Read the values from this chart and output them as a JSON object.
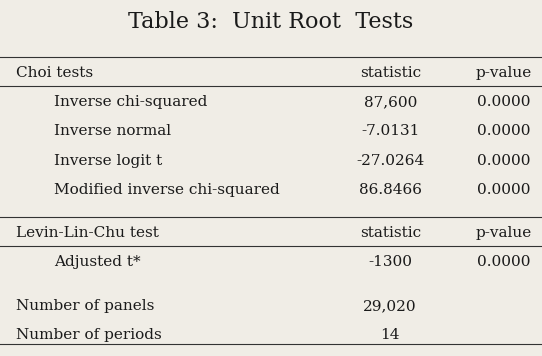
{
  "title": "Table 3:  Unit Root  Tests",
  "background_color": "#f0ede6",
  "text_color": "#1a1a1a",
  "font_family": "serif",
  "title_fontsize": 16,
  "header_fontsize": 11,
  "body_fontsize": 11,
  "sections": [
    {
      "header_left": "Choi tests",
      "header_stat": "statistic",
      "header_pval": "p-value",
      "rows": [
        {
          "label": "Inverse chi-squared",
          "stat": "87,600",
          "pval": "0.0000"
        },
        {
          "label": "Inverse normal",
          "stat": "-7.0131",
          "pval": "0.0000"
        },
        {
          "label": "Inverse logit t",
          "stat": "-27.0264",
          "pval": "0.0000"
        },
        {
          "label": "Modified inverse chi-squared",
          "stat": "86.8466",
          "pval": "0.0000"
        }
      ]
    },
    {
      "header_left": "Levin-Lin-Chu test",
      "header_stat": "statistic",
      "header_pval": "p-value",
      "rows": [
        {
          "label": "Adjusted t*",
          "stat": "-1300",
          "pval": "0.0000"
        }
      ]
    }
  ],
  "footer_rows": [
    {
      "label": "Number of panels",
      "value": "29,020"
    },
    {
      "label": "Number of periods",
      "value": "14"
    }
  ]
}
